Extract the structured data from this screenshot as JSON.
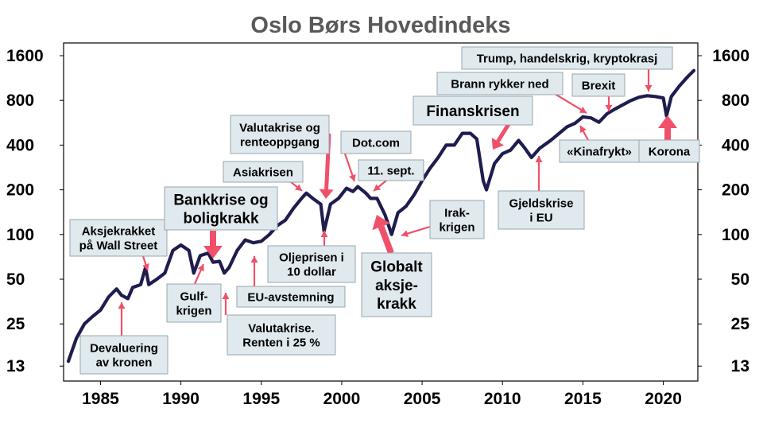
{
  "chart_data": {
    "type": "line",
    "title": "Oslo Børs Hovedindeks",
    "xlabel": "",
    "ylabel": "",
    "yscale": "log",
    "xlim": [
      1983,
      2022
    ],
    "ylim": [
      13,
      1600
    ],
    "x_ticks": [
      "1985",
      "1990",
      "1995",
      "2000",
      "2005",
      "2010",
      "2015",
      "2020"
    ],
    "y_ticks": [
      "1600",
      "800",
      "400",
      "200",
      "100",
      "50",
      "25",
      "13"
    ],
    "line_color": "#1f1d4e",
    "annotation_color": "#f0506a",
    "series": [
      {
        "x": [
          1983.0,
          1983.5,
          1984.0,
          1984.5,
          1985.0,
          1985.5,
          1986.0,
          1986.3,
          1986.7,
          1987.0,
          1987.5,
          1987.8,
          1988.0,
          1988.5,
          1989.0,
          1989.5,
          1990.0,
          1990.5,
          1990.8,
          1991.2,
          1991.7,
          1992.0,
          1992.4,
          1992.7,
          1993.0,
          1993.5,
          1994.0,
          1994.5,
          1995.0,
          1995.5,
          1996.0,
          1996.5,
          1997.0,
          1997.5,
          1997.8,
          1998.2,
          1998.7,
          1998.9,
          1999.3,
          1999.8,
          2000.3,
          2000.7,
          2001.0,
          2001.5,
          2001.8,
          2002.2,
          2002.7,
          2003.1,
          2003.5,
          2004.0,
          2004.5,
          2005.0,
          2005.5,
          2006.0,
          2006.5,
          2007.0,
          2007.5,
          2008.0,
          2008.4,
          2008.8,
          2009.0,
          2009.5,
          2010.0,
          2010.5,
          2011.0,
          2011.4,
          2011.8,
          2012.3,
          2013.0,
          2014.0,
          2014.5,
          2015.0,
          2015.5,
          2016.0,
          2016.5,
          2017.0,
          2018.0,
          2018.5,
          2019.0,
          2019.5,
          2020.0,
          2020.2,
          2020.5,
          2021.0,
          2021.5,
          2021.9
        ],
        "values": [
          14,
          20,
          25,
          28,
          31,
          38,
          43,
          39,
          37,
          44,
          46,
          60,
          46,
          50,
          55,
          78,
          85,
          78,
          55,
          72,
          75,
          65,
          66,
          55,
          60,
          78,
          92,
          88,
          90,
          100,
          115,
          125,
          150,
          175,
          190,
          175,
          160,
          105,
          160,
          175,
          205,
          195,
          210,
          190,
          175,
          175,
          135,
          100,
          140,
          155,
          185,
          230,
          280,
          330,
          400,
          400,
          480,
          480,
          440,
          230,
          200,
          300,
          350,
          370,
          430,
          380,
          330,
          380,
          430,
          530,
          560,
          620,
          610,
          570,
          650,
          700,
          800,
          840,
          860,
          850,
          830,
          630,
          850,
          1000,
          1150,
          1270
        ]
      }
    ],
    "annotations": [
      {
        "id": "a1",
        "lines": [
          "Aksjekrakket",
          "på Wall  Street"
        ],
        "size": 15
      },
      {
        "id": "a2",
        "lines": [
          "Devaluering",
          "av kronen"
        ],
        "size": 15
      },
      {
        "id": "a3",
        "lines": [
          "Bankkrise og",
          "boligkrakk"
        ],
        "size": 19
      },
      {
        "id": "a4",
        "lines": [
          "Gulf-",
          "krigen"
        ],
        "size": 15
      },
      {
        "id": "a5",
        "lines": [
          "Valutakrise.",
          "Renten i 25 %"
        ],
        "size": 15
      },
      {
        "id": "a6",
        "lines": [
          "EU-avstemning"
        ],
        "size": 15
      },
      {
        "id": "a7",
        "lines": [
          "Asiakrisen"
        ],
        "size": 15
      },
      {
        "id": "a8",
        "lines": [
          "Valutakrise og",
          "renteoppgang"
        ],
        "size": 15
      },
      {
        "id": "a9",
        "lines": [
          "Oljeprisen i",
          "10 dollar"
        ],
        "size": 15
      },
      {
        "id": "a10",
        "lines": [
          "Dot.com"
        ],
        "size": 15
      },
      {
        "id": "a11",
        "lines": [
          "11. sept."
        ],
        "size": 15
      },
      {
        "id": "a12",
        "lines": [
          "Globalt",
          "aksje-",
          "krakk"
        ],
        "size": 19
      },
      {
        "id": "a13",
        "lines": [
          "Irak-",
          "krigen"
        ],
        "size": 15
      },
      {
        "id": "a14",
        "lines": [
          "Finanskrisen"
        ],
        "size": 19
      },
      {
        "id": "a15",
        "lines": [
          "Gjeldskrise",
          "i EU"
        ],
        "size": 15
      },
      {
        "id": "a16",
        "lines": [
          "Brann rykker ned"
        ],
        "size": 15
      },
      {
        "id": "a17",
        "lines": [
          "Trump, handelskrig, kryptokrasj"
        ],
        "size": 15
      },
      {
        "id": "a18",
        "lines": [
          "Brexit"
        ],
        "size": 15
      },
      {
        "id": "a19",
        "lines": [
          "«Kinafrykt»"
        ],
        "size": 15
      },
      {
        "id": "a20",
        "lines": [
          "Korona"
        ],
        "size": 15
      }
    ]
  }
}
